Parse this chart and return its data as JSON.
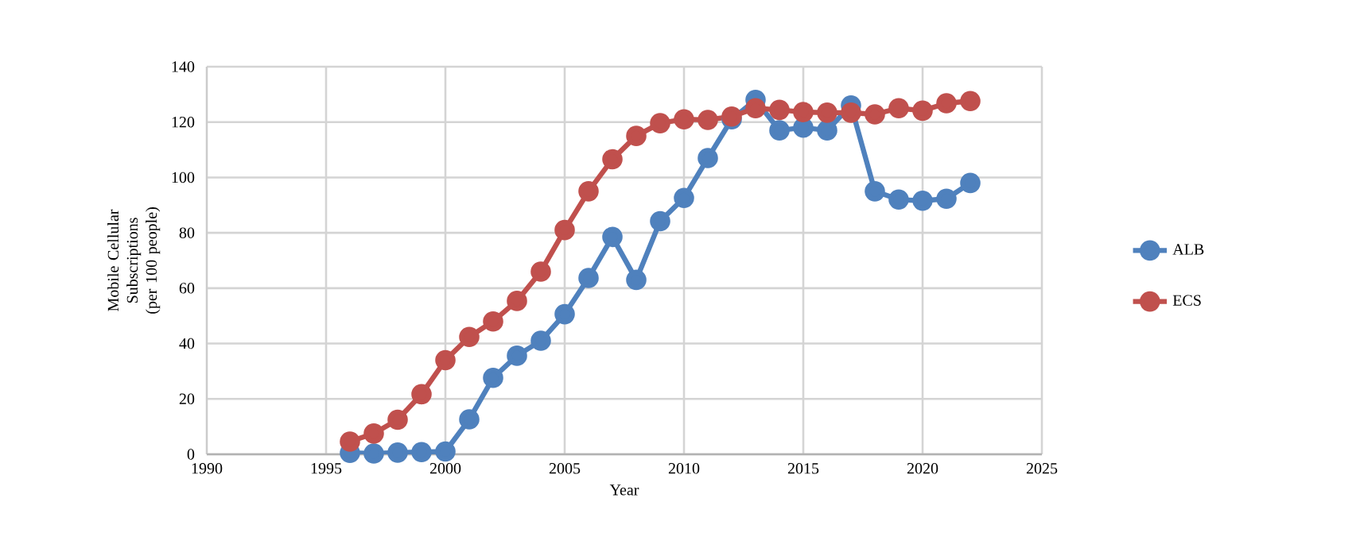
{
  "chart_data": {
    "type": "line",
    "xlabel": "Year",
    "ylabel": "Mobile Cellular Subscriptions (per 100 people)",
    "x": [
      1996,
      1997,
      1998,
      1999,
      2000,
      2001,
      2002,
      2003,
      2004,
      2005,
      2006,
      2007,
      2008,
      2009,
      2010,
      2011,
      2012,
      2013,
      2014,
      2015,
      2016,
      2017,
      2018,
      2019,
      2020,
      2021,
      2022
    ],
    "series": [
      {
        "name": "ALB",
        "color": "#4f81bd",
        "values": [
          0.5,
          0.3,
          0.6,
          0.8,
          1.0,
          12.6,
          27.6,
          35.6,
          41.0,
          50.6,
          63.7,
          78.5,
          63.0,
          84.2,
          92.6,
          107,
          121,
          128,
          117,
          118,
          117,
          126,
          95,
          92,
          91.6,
          92.3,
          98
        ]
      },
      {
        "name": "ECS",
        "color": "#c0504d",
        "values": [
          4.6,
          7.5,
          12.5,
          21.7,
          34,
          42.4,
          48,
          55.4,
          66,
          81,
          95,
          106.6,
          115,
          119.6,
          121,
          120.8,
          122,
          125,
          124.4,
          123.6,
          123.4,
          123.4,
          122.8,
          125,
          124.1,
          126.8,
          127.6
        ]
      }
    ],
    "xlim": [
      1990,
      2025
    ],
    "xticks": [
      1990,
      1995,
      2000,
      2005,
      2010,
      2015,
      2020,
      2025
    ],
    "ylim": [
      0,
      140
    ],
    "yticks": [
      0,
      20,
      40,
      60,
      80,
      100,
      120,
      140
    ],
    "grid": true,
    "legend": "right",
    "marker": "circle",
    "line_style": "solid"
  }
}
